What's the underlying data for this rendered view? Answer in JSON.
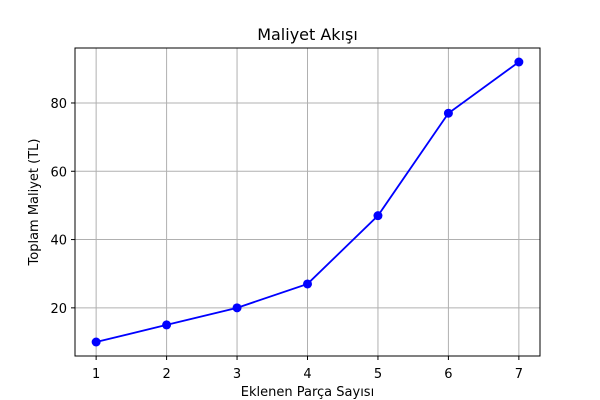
{
  "chart_data": {
    "type": "line",
    "title": "Maliyet Akışı",
    "xlabel": "Eklenen Parça Sayısı",
    "ylabel": "Toplam Maliyet (TL)",
    "x": [
      1,
      2,
      3,
      4,
      5,
      6,
      7
    ],
    "series": [
      {
        "values": [
          10,
          15,
          20,
          27,
          47,
          77,
          92
        ],
        "color": "#0000ff",
        "marker": "circle"
      }
    ],
    "xlim": [
      0.7,
      7.3
    ],
    "ylim": [
      5.9,
      96.1
    ],
    "xticks": [
      1,
      2,
      3,
      4,
      5,
      6,
      7
    ],
    "yticks": [
      20,
      40,
      60,
      80
    ],
    "grid": true
  }
}
